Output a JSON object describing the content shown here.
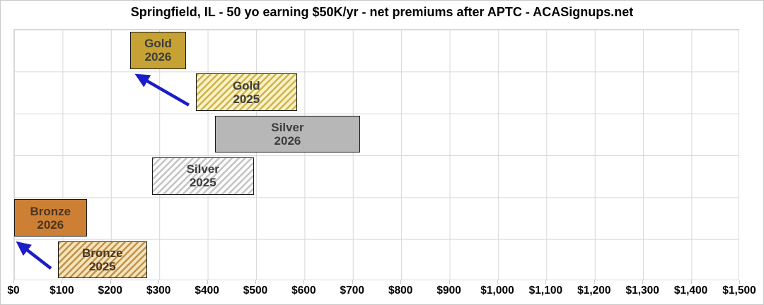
{
  "title": "Springfield, IL - 50 yo earning $50K/yr - net premiums after APTC - ACASignups.net",
  "chart_data": {
    "type": "bar",
    "orientation": "horizontal-range",
    "title": "Springfield, IL - 50 yo earning $50K/yr - net premiums after APTC - ACASignups.net",
    "xlabel": "",
    "ylabel": "",
    "x_axis": {
      "min": 0,
      "max": 1500,
      "step": 100,
      "tick_labels": [
        "$0",
        "$100",
        "$200",
        "$300",
        "$400",
        "$500",
        "$600",
        "$700",
        "$800",
        "$900",
        "$1,000",
        "$1,100",
        "$1,200",
        "$1,300",
        "$1,400",
        "$1,500"
      ]
    },
    "grid": {
      "show": true,
      "color": "#d8d8d8"
    },
    "legend_position": "none",
    "rows": [
      "Gold 2026",
      "Gold 2025",
      "Silver 2026",
      "Silver 2025",
      "Bronze 2026",
      "Bronze 2025"
    ],
    "series": [
      {
        "name": "Gold 2026",
        "line1": "Gold",
        "line2": "2026",
        "row": 0,
        "low": 240,
        "high": 355,
        "pattern": "solid",
        "fill": "#c5a233",
        "border": "#1a1a1a",
        "text_color": "#3d3d3d"
      },
      {
        "name": "Gold 2025",
        "line1": "Gold",
        "line2": "2025",
        "row": 1,
        "low": 375,
        "high": 585,
        "pattern": "hatch",
        "stripe": "#cfb34c",
        "bg": "#f8f2c6",
        "border": "#1a1a1a",
        "text_color": "#3d3d3d"
      },
      {
        "name": "Silver 2026",
        "line1": "Silver",
        "line2": "2026",
        "row": 2,
        "low": 415,
        "high": 715,
        "pattern": "solid",
        "fill": "#b7b7b7",
        "border": "#1a1a1a",
        "text_color": "#3d3d3d"
      },
      {
        "name": "Silver 2025",
        "line1": "Silver",
        "line2": "2025",
        "row": 3,
        "low": 285,
        "high": 495,
        "pattern": "hatch",
        "stripe": "#c4c4c4",
        "bg": "#fcfcfc",
        "border": "#1a1a1a",
        "text_color": "#3d3d3d"
      },
      {
        "name": "Bronze 2026",
        "line1": "Bronze",
        "line2": "2026",
        "row": 4,
        "low": 0,
        "high": 150,
        "pattern": "solid",
        "fill": "#cd7f34",
        "border": "#1a1a1a",
        "text_color": "#4a3522"
      },
      {
        "name": "Bronze 2025",
        "line1": "Bronze",
        "line2": "2025",
        "row": 5,
        "low": 90,
        "high": 275,
        "pattern": "hatch",
        "stripe": "#c2924a",
        "bg": "#f4e4bc",
        "border": "#1a1a1a",
        "text_color": "#4a3522"
      }
    ],
    "annotations": {
      "arrow_color": "#1c1cc8",
      "arrows": [
        {
          "name": "gold-2025-to-2026-arrow",
          "from": {
            "value": 361,
            "row": 1.8
          },
          "to": {
            "value": 256,
            "row": 1.1
          }
        },
        {
          "name": "bronze-2025-to-2026-arrow",
          "from": {
            "value": 76,
            "row": 5.7
          },
          "to": {
            "value": 10,
            "row": 5.11
          }
        }
      ]
    }
  }
}
